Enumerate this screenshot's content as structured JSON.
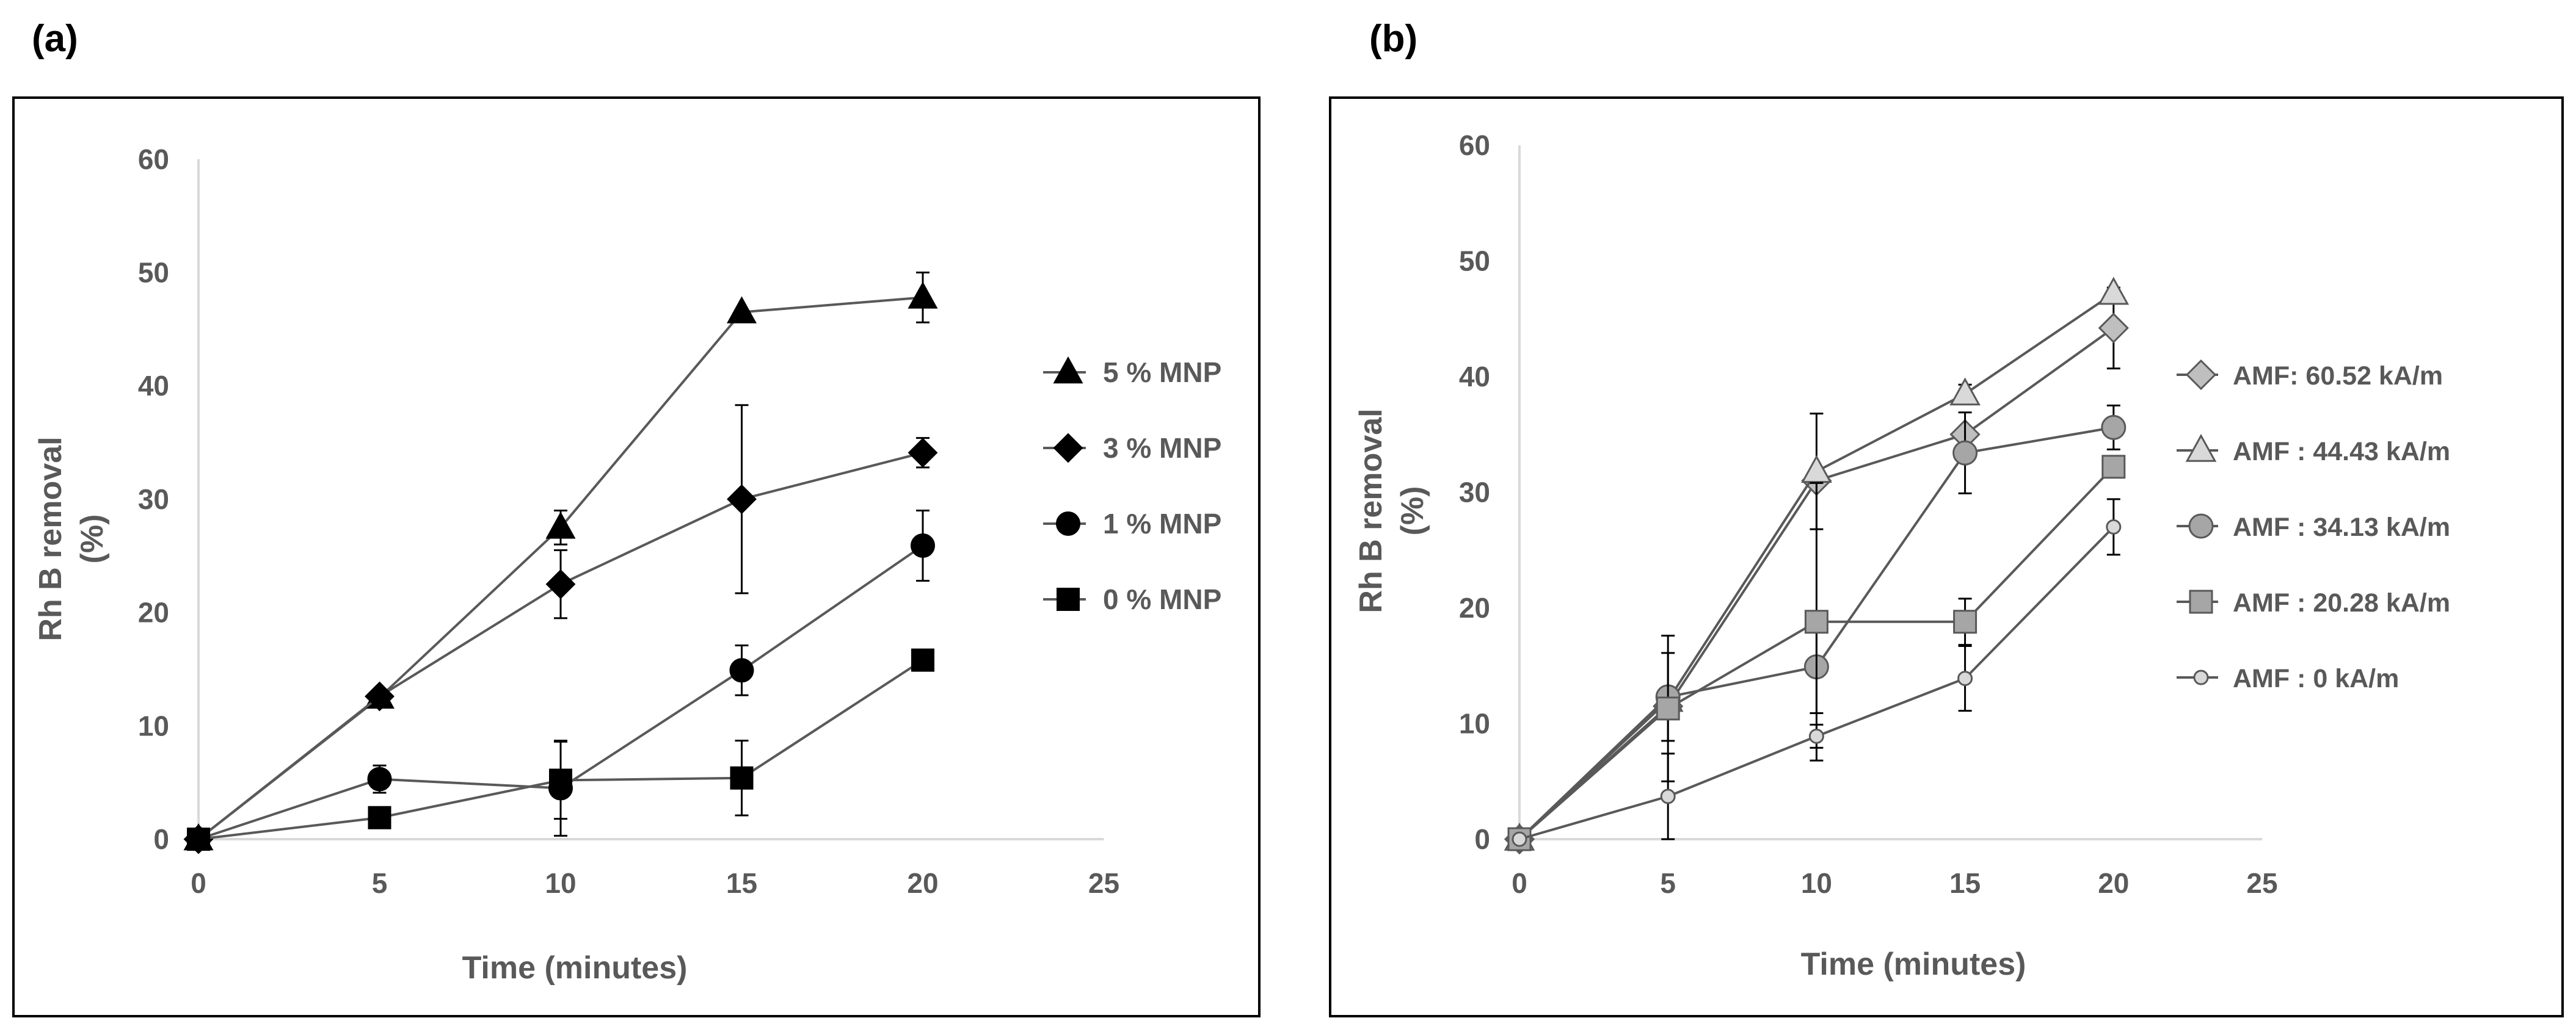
{
  "chart_data": [
    {
      "type": "line",
      "panel_label": "(a)",
      "xlabel": "Time (minutes)",
      "ylabel_line1": "Rh B removal",
      "ylabel_line2": "(%)",
      "xlim": [
        0,
        25
      ],
      "ylim": [
        0,
        60
      ],
      "x_ticks": [
        0,
        5,
        10,
        15,
        20,
        25
      ],
      "y_ticks": [
        0,
        10,
        20,
        30,
        40,
        50,
        60
      ],
      "x_tick_labels": [
        "0",
        "5",
        "10",
        "15",
        "20",
        "25"
      ],
      "y_tick_labels": [
        "0",
        "10",
        "20",
        "30",
        "40",
        "50",
        "60"
      ],
      "grid": false,
      "legend_position": "right",
      "series": [
        {
          "name": "5 % MNP",
          "marker": "triangle",
          "color": "#000000",
          "x": [
            0,
            5,
            10,
            15,
            20
          ],
          "y": [
            0,
            12.5,
            27.5,
            46.5,
            47.8
          ],
          "err": [
            0,
            0.3,
            1.5,
            0,
            2.2
          ]
        },
        {
          "name": "3 % MNP",
          "marker": "diamond",
          "color": "#000000",
          "x": [
            0,
            5,
            10,
            15,
            20
          ],
          "y": [
            0,
            12.6,
            22.5,
            30.0,
            34.1
          ],
          "err": [
            0,
            0.3,
            3.0,
            8.3,
            1.3
          ]
        },
        {
          "name": "1 % MNP",
          "marker": "circle",
          "color": "#000000",
          "x": [
            0,
            5,
            10,
            15,
            20
          ],
          "y": [
            0,
            5.3,
            4.5,
            14.9,
            25.9
          ],
          "err": [
            0,
            1.2,
            4.2,
            2.2,
            3.1
          ]
        },
        {
          "name": "0 % MNP",
          "marker": "square",
          "color": "#000000",
          "x": [
            0,
            5,
            10,
            15,
            20
          ],
          "y": [
            0,
            1.9,
            5.2,
            5.4,
            15.8
          ],
          "err": [
            0,
            0,
            3.4,
            3.3,
            0.8
          ]
        }
      ]
    },
    {
      "type": "line",
      "panel_label": "(b)",
      "xlabel": "Time (minutes)",
      "ylabel_line1": "Rh B removal",
      "ylabel_line2": "(%)",
      "xlim": [
        0,
        25
      ],
      "ylim": [
        0,
        60
      ],
      "x_ticks": [
        0,
        5,
        10,
        15,
        20,
        25
      ],
      "y_ticks": [
        0,
        10,
        20,
        30,
        40,
        50,
        60
      ],
      "x_tick_labels": [
        "0",
        "5",
        "10",
        "15",
        "20",
        "25"
      ],
      "y_tick_labels": [
        "0",
        "10",
        "20",
        "30",
        "40",
        "50",
        "60"
      ],
      "grid": false,
      "legend_position": "right",
      "series": [
        {
          "name": "AMF: 60.52 kA/m",
          "marker": "diamond",
          "color": "#bfbfbf",
          "x": [
            0,
            5,
            10,
            15,
            20
          ],
          "y": [
            0,
            11.5,
            31.0,
            35.0,
            44.2
          ],
          "err": [
            0,
            0,
            0,
            0,
            3.5
          ]
        },
        {
          "name": "AMF : 44.43 kA/m",
          "marker": "triangle",
          "color": "#d9d9d9",
          "x": [
            0,
            5,
            10,
            15,
            20
          ],
          "y": [
            0,
            12.0,
            31.8,
            38.5,
            47.2
          ],
          "err": [
            0,
            0,
            5.0,
            0.8,
            0
          ]
        },
        {
          "name": "AMF : 34.13 kA/m",
          "marker": "circle",
          "color": "#a6a6a6",
          "x": [
            0,
            5,
            10,
            15,
            20
          ],
          "y": [
            0,
            12.3,
            14.9,
            33.4,
            35.6
          ],
          "err": [
            0,
            3.8,
            4.0,
            3.5,
            1.9
          ]
        },
        {
          "name": "AMF : 20.28 kA/m",
          "marker": "square",
          "color": "#a6a6a6",
          "x": [
            0,
            5,
            10,
            15,
            20
          ],
          "y": [
            0,
            11.3,
            18.8,
            18.8,
            32.2
          ],
          "err": [
            0,
            6.3,
            12.0,
            2.0,
            0
          ]
        },
        {
          "name": "AMF : 0 kA/m",
          "marker": "smallcircle",
          "color": "#d9d9d9",
          "x": [
            0,
            5,
            10,
            15,
            20
          ],
          "y": [
            0,
            3.7,
            8.9,
            13.9,
            27.0
          ],
          "err": [
            0,
            3.7,
            1.0,
            2.8,
            2.4
          ]
        }
      ]
    }
  ]
}
